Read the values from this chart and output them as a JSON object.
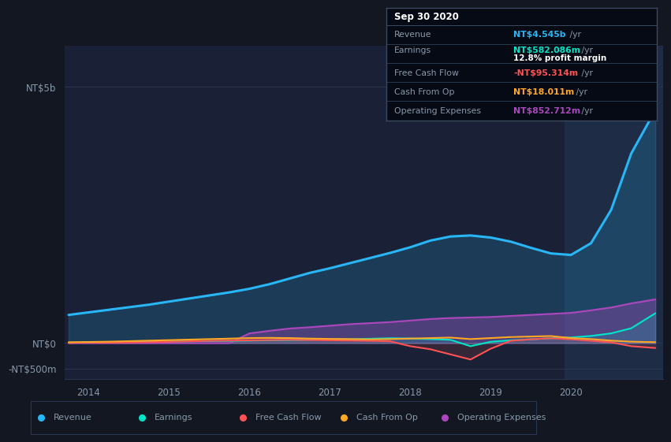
{
  "bg_color": "#131722",
  "plot_bg_color": "#1a2035",
  "highlight_bg_color": "#1e2d45",
  "grid_color": "#2a3550",
  "text_color": "#8899aa",
  "title_color": "#ffffff",
  "ytick_labels": [
    "NT$5b",
    "NT$0",
    "-NT$500m"
  ],
  "ytick_values": [
    5000,
    0,
    -500
  ],
  "ylim": [
    -700,
    5800
  ],
  "xlim": [
    2013.7,
    2021.15
  ],
  "xtick_labels": [
    "2014",
    "2015",
    "2016",
    "2017",
    "2018",
    "2019",
    "2020"
  ],
  "xtick_values": [
    2014,
    2015,
    2016,
    2017,
    2018,
    2019,
    2020
  ],
  "highlight_start": 2019.92,
  "highlight_end": 2021.15,
  "series": {
    "revenue": {
      "color": "#29b6f6",
      "label": "Revenue",
      "x": [
        2013.75,
        2014.0,
        2014.25,
        2014.5,
        2014.75,
        2015.0,
        2015.25,
        2015.5,
        2015.75,
        2016.0,
        2016.25,
        2016.5,
        2016.75,
        2017.0,
        2017.25,
        2017.5,
        2017.75,
        2018.0,
        2018.25,
        2018.5,
        2018.75,
        2019.0,
        2019.25,
        2019.5,
        2019.75,
        2020.0,
        2020.25,
        2020.5,
        2020.75,
        2021.05
      ],
      "y": [
        550,
        600,
        650,
        700,
        750,
        810,
        870,
        930,
        990,
        1060,
        1150,
        1260,
        1370,
        1460,
        1560,
        1660,
        1760,
        1870,
        2000,
        2080,
        2100,
        2060,
        1980,
        1860,
        1750,
        1720,
        1950,
        2600,
        3700,
        4545
      ]
    },
    "earnings": {
      "color": "#00e5c8",
      "label": "Earnings",
      "x": [
        2013.75,
        2014.0,
        2014.25,
        2014.5,
        2014.75,
        2015.0,
        2015.25,
        2015.5,
        2015.75,
        2016.0,
        2016.25,
        2016.5,
        2016.75,
        2017.0,
        2017.25,
        2017.5,
        2017.75,
        2018.0,
        2018.25,
        2018.5,
        2018.75,
        2019.0,
        2019.25,
        2019.5,
        2019.75,
        2020.0,
        2020.25,
        2020.5,
        2020.75,
        2021.05
      ],
      "y": [
        5,
        15,
        10,
        20,
        25,
        30,
        35,
        40,
        45,
        50,
        55,
        60,
        65,
        70,
        75,
        85,
        95,
        90,
        80,
        65,
        -60,
        25,
        55,
        75,
        95,
        110,
        140,
        190,
        290,
        582
      ]
    },
    "free_cash_flow": {
      "color": "#ff5252",
      "label": "Free Cash Flow",
      "x": [
        2013.75,
        2014.0,
        2014.25,
        2014.5,
        2014.75,
        2015.0,
        2015.25,
        2015.5,
        2015.75,
        2016.0,
        2016.25,
        2016.5,
        2016.75,
        2017.0,
        2017.25,
        2017.5,
        2017.75,
        2018.0,
        2018.25,
        2018.5,
        2018.75,
        2019.0,
        2019.25,
        2019.5,
        2019.75,
        2020.0,
        2020.25,
        2020.5,
        2020.75,
        2021.05
      ],
      "y": [
        5,
        10,
        8,
        12,
        18,
        25,
        35,
        45,
        50,
        55,
        60,
        65,
        60,
        55,
        50,
        45,
        35,
        -60,
        -120,
        -220,
        -320,
        -110,
        45,
        75,
        95,
        75,
        45,
        15,
        -60,
        -95
      ]
    },
    "cash_from_op": {
      "color": "#ffa726",
      "label": "Cash From Op",
      "x": [
        2013.75,
        2014.0,
        2014.25,
        2014.5,
        2014.75,
        2015.0,
        2015.25,
        2015.5,
        2015.75,
        2016.0,
        2016.25,
        2016.5,
        2016.75,
        2017.0,
        2017.25,
        2017.5,
        2017.75,
        2018.0,
        2018.25,
        2018.5,
        2018.75,
        2019.0,
        2019.25,
        2019.5,
        2019.75,
        2020.0,
        2020.25,
        2020.5,
        2020.75,
        2021.05
      ],
      "y": [
        18,
        22,
        28,
        38,
        48,
        58,
        68,
        78,
        88,
        98,
        102,
        98,
        88,
        82,
        78,
        72,
        78,
        88,
        98,
        108,
        78,
        98,
        118,
        128,
        138,
        98,
        78,
        48,
        28,
        18
      ]
    },
    "operating_expenses": {
      "color": "#ab47bc",
      "label": "Operating Expenses",
      "x": [
        2013.75,
        2014.0,
        2014.25,
        2014.5,
        2014.75,
        2015.0,
        2015.25,
        2015.5,
        2015.75,
        2016.0,
        2016.25,
        2016.5,
        2016.75,
        2017.0,
        2017.25,
        2017.5,
        2017.75,
        2018.0,
        2018.25,
        2018.5,
        2018.75,
        2019.0,
        2019.25,
        2019.5,
        2019.75,
        2020.0,
        2020.25,
        2020.5,
        2020.75,
        2021.05
      ],
      "y": [
        0,
        0,
        0,
        0,
        0,
        0,
        0,
        0,
        0,
        190,
        240,
        285,
        310,
        340,
        370,
        390,
        410,
        440,
        470,
        490,
        500,
        510,
        530,
        550,
        570,
        590,
        640,
        695,
        775,
        853
      ]
    }
  },
  "info_box": {
    "title": "Sep 30 2020",
    "bg_color": "#050a14",
    "border_color": "#3a4a60",
    "rows": [
      {
        "label": "Revenue",
        "value": "NT$4.545b",
        "value_color": "#29b6f6",
        "suffix": " /yr",
        "extra": null
      },
      {
        "label": "Earnings",
        "value": "NT$582.086m",
        "value_color": "#00e5c8",
        "suffix": " /yr",
        "extra": "12.8% profit margin"
      },
      {
        "label": "Free Cash Flow",
        "value": "-NT$95.314m",
        "value_color": "#ff5252",
        "suffix": " /yr",
        "extra": null
      },
      {
        "label": "Cash From Op",
        "value": "NT$18.011m",
        "value_color": "#ffa726",
        "suffix": " /yr",
        "extra": null
      },
      {
        "label": "Operating Expenses",
        "value": "NT$852.712m",
        "value_color": "#ab47bc",
        "suffix": " /yr",
        "extra": null
      }
    ]
  },
  "legend_items": [
    {
      "label": "Revenue",
      "color": "#29b6f6"
    },
    {
      "label": "Earnings",
      "color": "#00e5c8"
    },
    {
      "label": "Free Cash Flow",
      "color": "#ff5252"
    },
    {
      "label": "Cash From Op",
      "color": "#ffa726"
    },
    {
      "label": "Operating Expenses",
      "color": "#ab47bc"
    }
  ]
}
